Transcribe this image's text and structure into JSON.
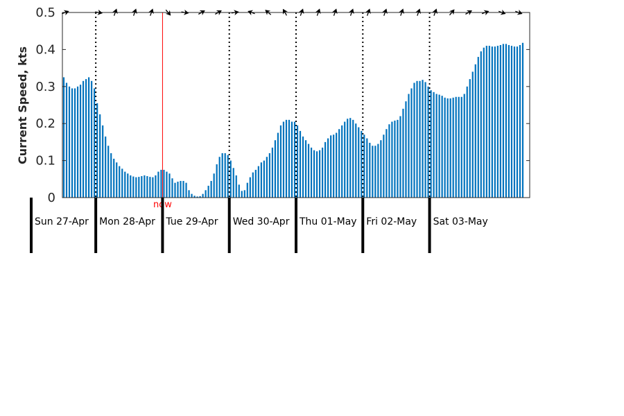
{
  "chart_data": {
    "type": "bar",
    "title": "",
    "xlabel": "",
    "ylabel": "Current Speed, kts",
    "ylim": [
      0,
      0.5
    ],
    "yticks": [
      0,
      0.1,
      0.2,
      0.3,
      0.4,
      0.5
    ],
    "ytick_labels": [
      "0",
      "0.1",
      "0.2",
      "0.3",
      "0.4",
      "0.5"
    ],
    "x_unit": "hour",
    "x_range_hours": [
      0,
      168
    ],
    "grid": false,
    "bar_color": "#0072bd",
    "now_color": "#ff0000",
    "now_hour": 36,
    "now_label": "now",
    "days": [
      {
        "label": "Sun 27-Apr",
        "start_hour": 0
      },
      {
        "label": "Mon 28-Apr",
        "start_hour": 12
      },
      {
        "label": "Tue 29-Apr",
        "start_hour": 36
      },
      {
        "label": "Wed 30-Apr",
        "start_hour": 60
      },
      {
        "label": "Thu 01-May",
        "start_hour": 84
      },
      {
        "label": "Fri 02-May",
        "start_hour": 108
      },
      {
        "label": "Sat 03-May",
        "start_hour": 132
      }
    ],
    "day_boundaries_hours": [
      12,
      36,
      60,
      84,
      108,
      132
    ],
    "direction_arrows": [
      {
        "hour": 1,
        "direction_deg": 70
      },
      {
        "hour": 13,
        "direction_deg": 100
      },
      {
        "hour": 19,
        "direction_deg": 20
      },
      {
        "hour": 26,
        "direction_deg": 20
      },
      {
        "hour": 32,
        "direction_deg": 20
      },
      {
        "hour": 38,
        "direction_deg": 140
      },
      {
        "hour": 44,
        "direction_deg": 100
      },
      {
        "hour": 50,
        "direction_deg": 60
      },
      {
        "hour": 56,
        "direction_deg": 60
      },
      {
        "hour": 62,
        "direction_deg": 80
      },
      {
        "hour": 68,
        "direction_deg": 290
      },
      {
        "hour": 74,
        "direction_deg": 310
      },
      {
        "hour": 80,
        "direction_deg": 330
      },
      {
        "hour": 86,
        "direction_deg": 20
      },
      {
        "hour": 92,
        "direction_deg": 20
      },
      {
        "hour": 98,
        "direction_deg": 20
      },
      {
        "hour": 104,
        "direction_deg": 20
      },
      {
        "hour": 110,
        "direction_deg": 20
      },
      {
        "hour": 116,
        "direction_deg": 20
      },
      {
        "hour": 122,
        "direction_deg": 20
      },
      {
        "hour": 128,
        "direction_deg": 20
      },
      {
        "hour": 134,
        "direction_deg": 20
      },
      {
        "hour": 140,
        "direction_deg": 40
      },
      {
        "hour": 146,
        "direction_deg": 60
      },
      {
        "hour": 152,
        "direction_deg": 70
      },
      {
        "hour": 158,
        "direction_deg": 110
      },
      {
        "hour": 164,
        "direction_deg": 110
      }
    ],
    "values": [
      0.325,
      0.31,
      0.3,
      0.295,
      0.295,
      0.3,
      0.305,
      0.315,
      0.32,
      0.325,
      0.315,
      0.295,
      0.255,
      0.225,
      0.195,
      0.165,
      0.14,
      0.12,
      0.105,
      0.095,
      0.085,
      0.078,
      0.07,
      0.065,
      0.06,
      0.057,
      0.055,
      0.056,
      0.058,
      0.06,
      0.058,
      0.056,
      0.055,
      0.06,
      0.07,
      0.075,
      0.075,
      0.07,
      0.065,
      0.052,
      0.04,
      0.043,
      0.045,
      0.045,
      0.04,
      0.02,
      0.01,
      0.005,
      0.003,
      0.004,
      0.01,
      0.02,
      0.032,
      0.045,
      0.065,
      0.09,
      0.11,
      0.12,
      0.12,
      0.115,
      0.1,
      0.08,
      0.06,
      0.035,
      0.018,
      0.02,
      0.04,
      0.055,
      0.068,
      0.075,
      0.085,
      0.095,
      0.1,
      0.11,
      0.12,
      0.135,
      0.155,
      0.175,
      0.195,
      0.205,
      0.21,
      0.21,
      0.205,
      0.205,
      0.195,
      0.18,
      0.165,
      0.155,
      0.145,
      0.135,
      0.128,
      0.125,
      0.128,
      0.135,
      0.15,
      0.16,
      0.168,
      0.17,
      0.175,
      0.185,
      0.195,
      0.205,
      0.213,
      0.215,
      0.21,
      0.2,
      0.19,
      0.18,
      0.17,
      0.16,
      0.148,
      0.14,
      0.14,
      0.145,
      0.155,
      0.17,
      0.185,
      0.198,
      0.205,
      0.208,
      0.21,
      0.22,
      0.24,
      0.26,
      0.28,
      0.295,
      0.31,
      0.315,
      0.315,
      0.318,
      0.312,
      0.3,
      0.29,
      0.285,
      0.28,
      0.278,
      0.275,
      0.27,
      0.268,
      0.268,
      0.27,
      0.272,
      0.272,
      0.272,
      0.28,
      0.3,
      0.32,
      0.34,
      0.36,
      0.38,
      0.395,
      0.405,
      0.41,
      0.41,
      0.408,
      0.408,
      0.41,
      0.412,
      0.415,
      0.415,
      0.412,
      0.41,
      0.408,
      0.408,
      0.412,
      0.418
    ]
  }
}
